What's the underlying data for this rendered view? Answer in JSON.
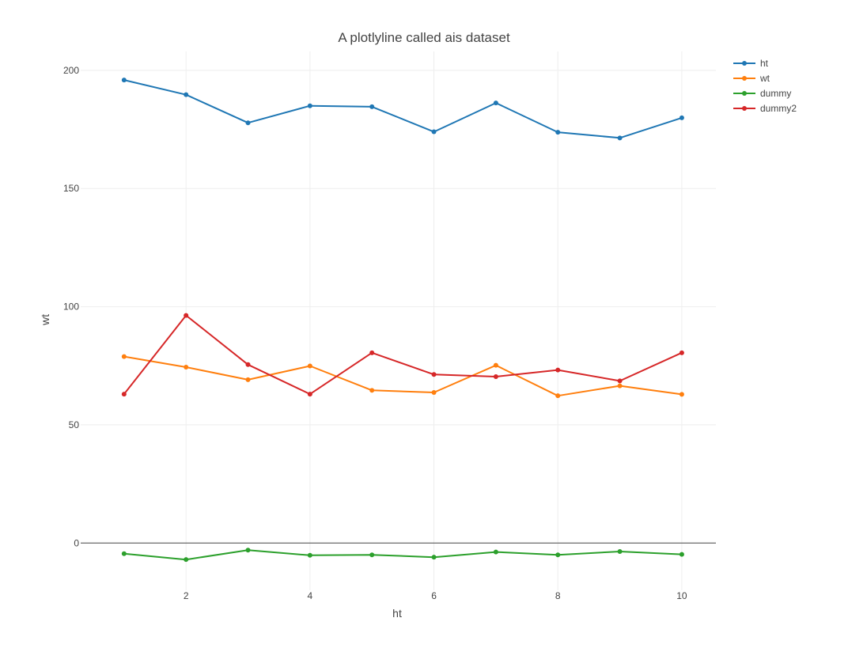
{
  "chart_data": {
    "type": "line",
    "title": "A plotlyline called ais dataset",
    "xlabel": "ht",
    "ylabel": "wt",
    "x": [
      1,
      2,
      3,
      4,
      5,
      6,
      7,
      8,
      9,
      10
    ],
    "xlim": [
      0.3,
      10.55
    ],
    "ylim": [
      -20,
      208
    ],
    "xticks": [
      2,
      4,
      6,
      8,
      10
    ],
    "yticks": [
      0,
      50,
      100,
      150,
      200
    ],
    "grid": true,
    "zero_line": true,
    "legend_position": "top-right",
    "series": [
      {
        "name": "ht",
        "color": "#1f77b4",
        "values": [
          195.9,
          189.7,
          177.8,
          185.0,
          184.6,
          174.0,
          186.2,
          173.8,
          171.4,
          179.9
        ]
      },
      {
        "name": "wt",
        "color": "#ff7f0e",
        "values": [
          78.9,
          74.4,
          69.1,
          74.9,
          64.6,
          63.7,
          75.2,
          62.3,
          66.5,
          62.9
        ]
      },
      {
        "name": "dummy",
        "color": "#2ca02c",
        "values": [
          -4.5,
          -7.0,
          -3.0,
          -5.2,
          -5.0,
          -6.0,
          -3.8,
          -5.0,
          -3.6,
          -4.8
        ]
      },
      {
        "name": "dummy2",
        "color": "#d62728",
        "values": [
          63.0,
          96.3,
          75.5,
          63.0,
          80.5,
          71.3,
          70.4,
          73.2,
          68.6,
          80.5
        ]
      }
    ]
  }
}
